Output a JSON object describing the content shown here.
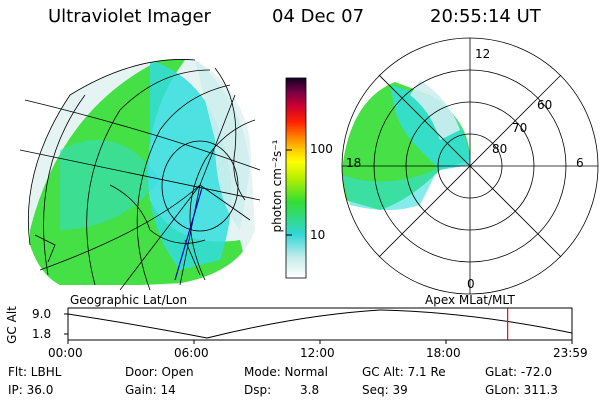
{
  "header": {
    "title": "Ultraviolet Imager",
    "date": "04 Dec 07",
    "time": "20:55:14 UT"
  },
  "colorbar": {
    "unit_label": "photon cm⁻²s⁻¹",
    "tick_labels": [
      "100",
      "10"
    ]
  },
  "polar_plot": {
    "mlt_labels": [
      "12",
      "18",
      "6",
      "0"
    ],
    "lat_labels": [
      "60",
      "70",
      "80"
    ]
  },
  "panel_labels": {
    "left": "Geographic Lat/Lon",
    "right": "Apex MLat/MLT"
  },
  "altitude_plot": {
    "ylabel": "GC Alt",
    "y_ticks": [
      "9.0",
      "1.8"
    ],
    "x_ticks": [
      "00:00",
      "06:00",
      "12:00",
      "18:00",
      "23:59"
    ],
    "current_time_marker_hours": 20.92,
    "marker_color": "#ff0000"
  },
  "info": {
    "row1": {
      "filter": "Flt: LBHL",
      "door": "Door: Open",
      "mode": "Mode: Normal",
      "gc_alt": "GC Alt: 7.1 Re",
      "glat": "GLat: -72.0"
    },
    "row2": {
      "ip": "IP: 36.0",
      "gain": "Gain: 14",
      "dsp_label": "Dsp:",
      "dsp_value": "3.8",
      "seq": "Seq: 39",
      "glon": "GLon: 311.3"
    }
  },
  "colors": {
    "aurora_green": "#33dd33",
    "aurora_cyan": "#33dddd",
    "aurora_light": "#cfeeee"
  }
}
